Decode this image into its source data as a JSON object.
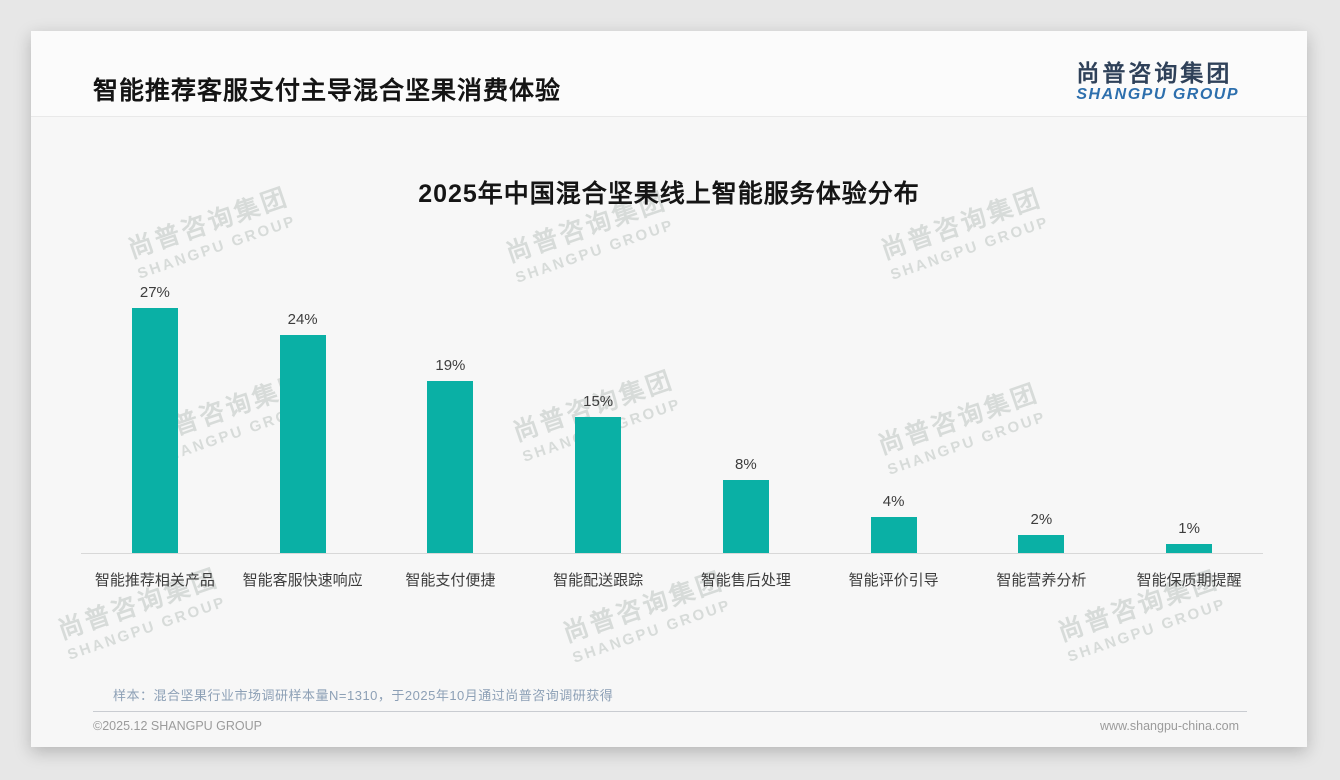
{
  "page": {
    "title": "智能推荐客服支付主导混合坚果消费体验",
    "logo": {
      "cn": "尚普咨询集团",
      "en": "SHANGPU GROUP"
    },
    "footnote": "样本：混合坚果行业市场调研样本量N=1310，于2025年10月通过尚普咨询调研获得",
    "footer_left": "©2025.12 SHANGPU GROUP",
    "footer_right": "www.shangpu-china.com",
    "watermark": {
      "cn": "尚普咨询集团",
      "en": "SHANGPU GROUP"
    }
  },
  "chart_data": {
    "type": "bar",
    "title": "2025年中国混合坚果线上智能服务体验分布",
    "categories": [
      "智能推荐相关产品",
      "智能客服快速响应",
      "智能支付便捷",
      "智能配送跟踪",
      "智能售后处理",
      "智能评价引导",
      "智能营养分析",
      "智能保质期提醒"
    ],
    "values": [
      27,
      24,
      19,
      15,
      8,
      4,
      2,
      1
    ],
    "unit": "%",
    "xlabel": "",
    "ylabel": "",
    "ylim": [
      0,
      30
    ],
    "grid": false,
    "legend": false,
    "bar_color": "#0ab0a5",
    "value_label_color": "#3d3d3d"
  }
}
